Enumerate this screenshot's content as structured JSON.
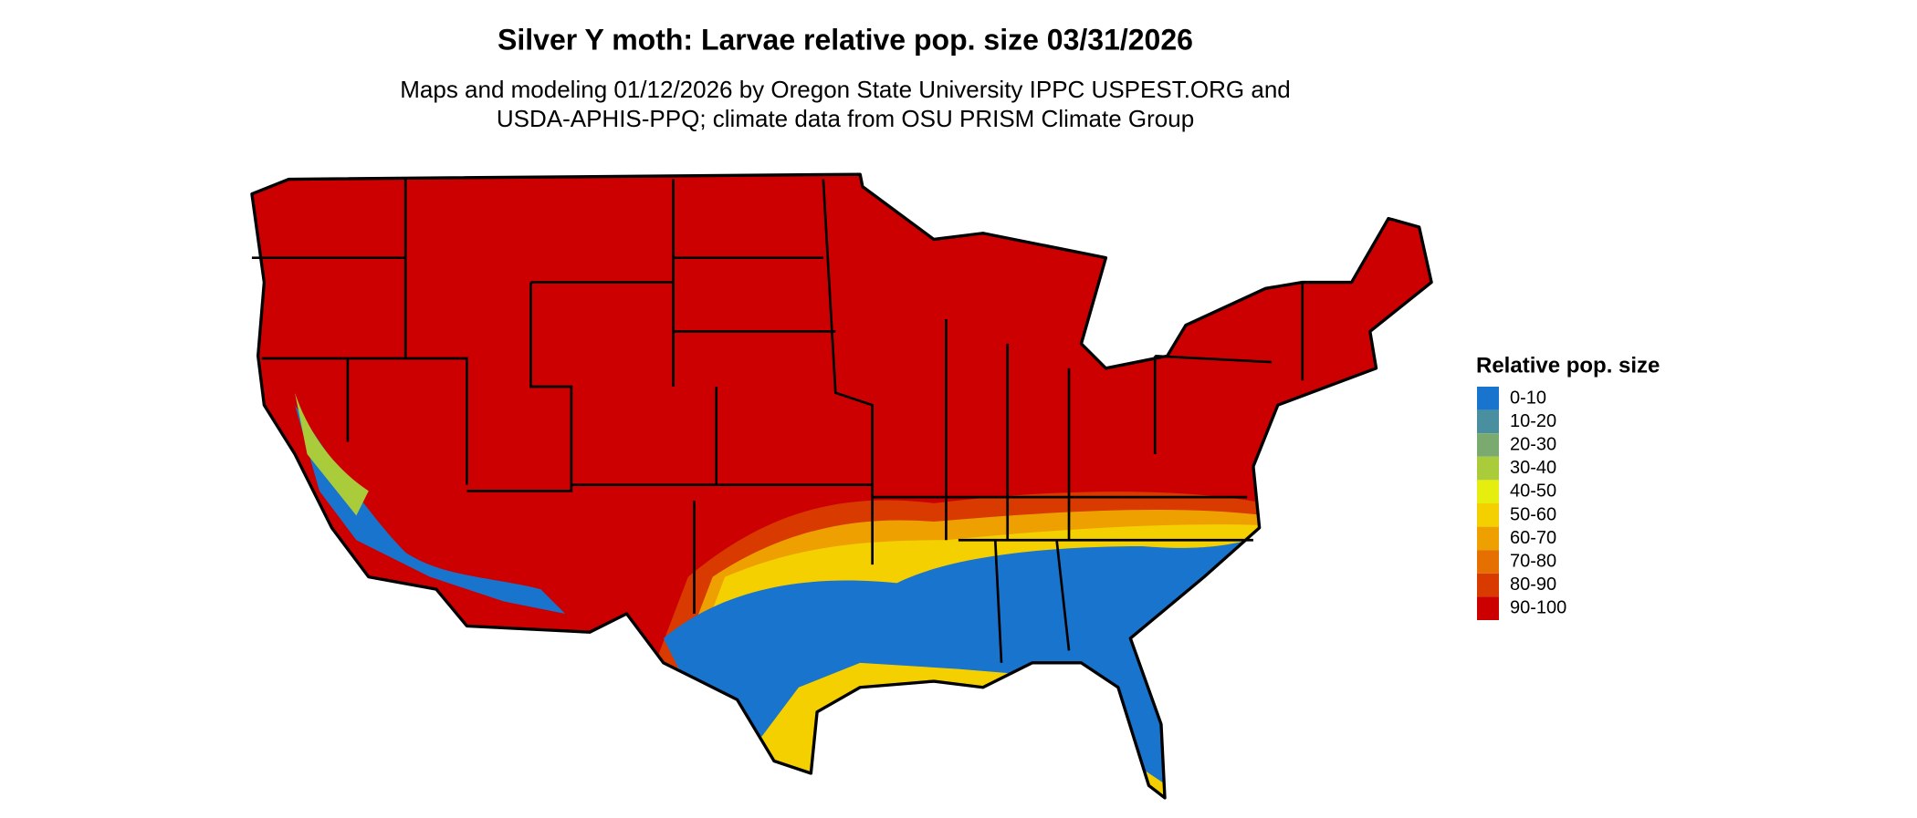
{
  "header": {
    "title": "Silver Y moth: Larvae relative pop. size 03/31/2026",
    "subtitle": [
      "Maps and modeling 01/12/2026 by Oregon State University IPPC USPEST.ORG and",
      "USDA-APHIS-PPQ; climate data from OSU PRISM Climate Group"
    ]
  },
  "legend": {
    "title": "Relative pop. size",
    "items": [
      {
        "label": "0-10",
        "color": "#1874cd"
      },
      {
        "label": "10-20",
        "color": "#4a8fa0"
      },
      {
        "label": "20-30",
        "color": "#7aaa70"
      },
      {
        "label": "30-40",
        "color": "#aacc3a"
      },
      {
        "label": "40-50",
        "color": "#e6ee10"
      },
      {
        "label": "50-60",
        "color": "#f5d000"
      },
      {
        "label": "60-70",
        "color": "#eea000"
      },
      {
        "label": "70-80",
        "color": "#e57000"
      },
      {
        "label": "80-90",
        "color": "#d83a00"
      },
      {
        "label": "90-100",
        "color": "#cc0000"
      }
    ]
  }
}
